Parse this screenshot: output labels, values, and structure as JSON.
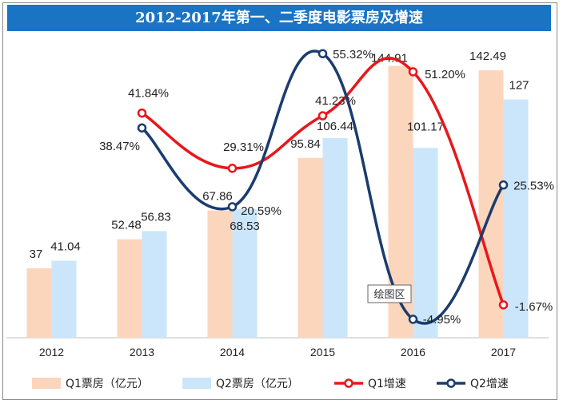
{
  "title": "2012-2017年第一、二季度电影票房及增速",
  "tooltip": "绘图区",
  "colors": {
    "q1_bar": "#fcd5bd",
    "q2_bar": "#cbe6fa",
    "q1_line": "#e8171b",
    "q2_line": "#1b3c6e",
    "title_bg": "#1a74c4"
  },
  "chart_data": {
    "type": "bar",
    "categories": [
      "2012",
      "2013",
      "2014",
      "2015",
      "2016",
      "2017"
    ],
    "bar_series": [
      {
        "name": "Q1票房（亿元）",
        "values": [
          37,
          52.48,
          67.86,
          95.84,
          144.91,
          142.49
        ],
        "labels": [
          "37",
          "52.48",
          "67.86",
          "95.84",
          "144.91",
          "142.49"
        ]
      },
      {
        "name": "Q2票房（亿元）",
        "values": [
          41.04,
          56.83,
          68.53,
          106.44,
          101.17,
          127
        ],
        "labels": [
          "41.04",
          "56.83",
          "68.53",
          "106.44",
          "101.17",
          "127"
        ]
      }
    ],
    "line_series": [
      {
        "name": "Q1增速",
        "values": [
          null,
          41.84,
          29.31,
          41.23,
          51.2,
          -1.67
        ],
        "labels": [
          "",
          "41.84%",
          "29.31%",
          "41.23%",
          "51.20%",
          "-1.67%"
        ]
      },
      {
        "name": "Q2增速",
        "values": [
          null,
          38.47,
          20.59,
          55.32,
          -4.95,
          25.53
        ],
        "labels": [
          "",
          "38.47%",
          "20.59%",
          "55.32%",
          "-4.95%",
          "25.53%"
        ]
      }
    ],
    "bar_ylim": [
      0,
      150
    ],
    "line_ylim": [
      -10,
      60
    ],
    "grid": false,
    "legend_position": "bottom"
  }
}
